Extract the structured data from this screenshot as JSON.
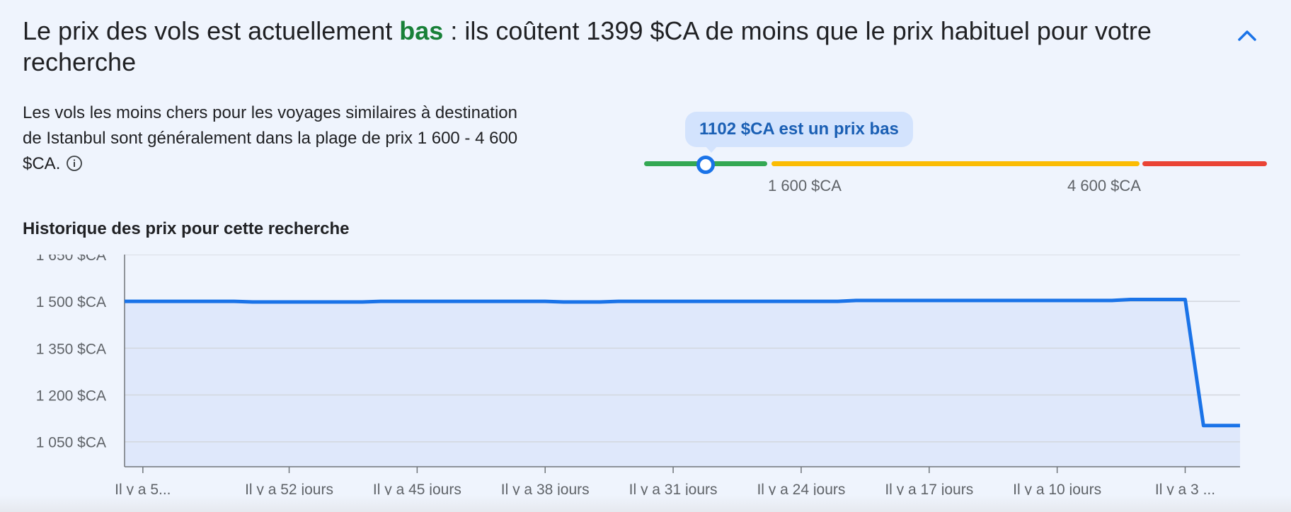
{
  "header": {
    "headline_before": "Le prix des vols est actuellement ",
    "headline_level": "bas",
    "headline_after": " : ils coûtent 1399 $CA de moins que le prix habituel pour votre recherche",
    "collapse_icon": "chevron-up-icon"
  },
  "summary": {
    "description": "Les vols les moins chers pour les voyages similaires à destination de Istanbul sont généralement dans la plage de prix 1 600 - 4 600 $CA.",
    "info_icon": "info-icon"
  },
  "price_range": {
    "bubble_text": "1102 $CA est un prix bas",
    "low_label": "1 600 $CA",
    "high_label": "4 600 $CA",
    "current_price": 1102,
    "typical_low": 1600,
    "typical_high": 4600,
    "colors": {
      "low": "#34a853",
      "typical": "#fbbc04",
      "high": "#ea4335"
    }
  },
  "history": {
    "title": "Historique des prix pour cette recherche"
  },
  "chart_data": {
    "type": "area",
    "title": "Historique des prix pour cette recherche",
    "ylim": [
      970,
      1650
    ],
    "y_ticks": [
      1650,
      1500,
      1350,
      1200,
      1050
    ],
    "y_tick_labels": [
      "1 650 $CA",
      "1 500 $CA",
      "1 350 $CA",
      "1 200 $CA",
      "1 050 $CA"
    ],
    "x_ticks": [
      -60,
      -52,
      -45,
      -38,
      -31,
      -24,
      -17,
      -10,
      -3
    ],
    "x_tick_labels": [
      "Il y a 5...",
      "Il y a 52 jours",
      "Il y a 45 jours",
      "Il y a 38 jours",
      "Il y a 31 jours",
      "Il y a 24 jours",
      "Il y a 17 jours",
      "Il y a 10 jours",
      "Il y a 3 ..."
    ],
    "grid": true,
    "series": [
      {
        "x": [
          -61,
          -55,
          -54,
          -48,
          -47,
          -38,
          -37,
          -35,
          -34,
          -22,
          -21,
          -7,
          -6,
          -3,
          -2,
          0
        ],
        "y": [
          1500,
          1500,
          1498,
          1498,
          1500,
          1500,
          1498,
          1498,
          1500,
          1500,
          1503,
          1503,
          1506,
          1506,
          1102,
          1102
        ],
        "color": "#1a73e8",
        "fill": "#dfe8fb"
      }
    ]
  }
}
